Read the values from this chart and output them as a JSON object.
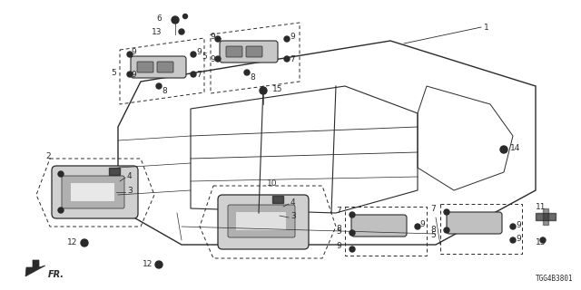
{
  "bg_color": "#ffffff",
  "lc": "#2a2a2a",
  "fig_w": 6.4,
  "fig_h": 3.2,
  "dpi": 100,
  "part_no": "TGG4B3801",
  "annotation_fontsize": 6.5,
  "small_fontsize": 6.0
}
